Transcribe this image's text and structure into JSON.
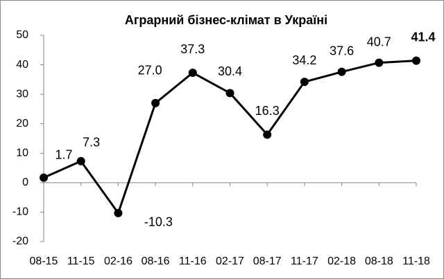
{
  "chart_data": {
    "type": "line",
    "title": "Аграрний бізнес-клімат в Україні",
    "categories": [
      "08-15",
      "11-15",
      "02-16",
      "08-16",
      "11-16",
      "02-17",
      "08-17",
      "11-17",
      "02-18",
      "08-18",
      "11-18"
    ],
    "values": [
      1.7,
      7.3,
      -10.3,
      27.0,
      37.3,
      30.4,
      16.3,
      34.2,
      37.6,
      40.7,
      41.4
    ],
    "value_labels": [
      "1.7",
      "7.3",
      "-10.3",
      "27.0",
      "37.3",
      "30.4",
      "16.3",
      "34.2",
      "37.6",
      "40.7",
      "41.4"
    ],
    "color": "#000000",
    "ylim": [
      -20,
      50
    ],
    "yticks": [
      -20,
      -10,
      0,
      10,
      20,
      30,
      40,
      50
    ],
    "grid": false
  }
}
